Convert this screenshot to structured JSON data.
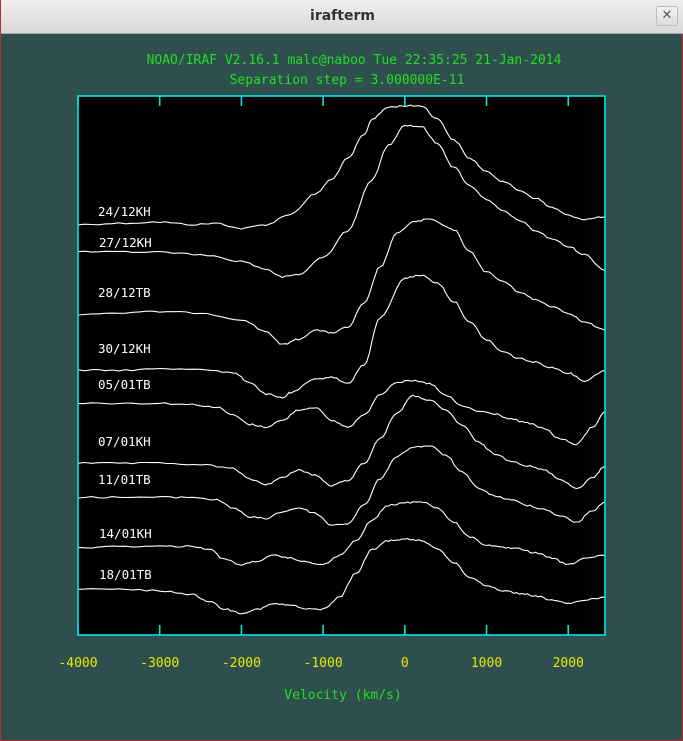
{
  "window": {
    "title": "irafterm",
    "close_symbol": "✕"
  },
  "header": {
    "line1": "NOAO/IRAF V2.16.1 malc@naboo Tue 22:35:25 21-Jan-2014",
    "line2": "Separation step = 3.000000E-11"
  },
  "colors": {
    "background": "#2f4f4f",
    "frame": "#00e5e5",
    "header_text": "#22dd22",
    "tick_labels": "#e8e800",
    "traces": "#ffffff"
  },
  "chart_data": {
    "type": "line",
    "xlabel": "Velocity (km/s)",
    "xlim": [
      -4000,
      2450
    ],
    "x_ticks": [
      -4000,
      -3000,
      -2000,
      -1000,
      0,
      1000,
      2000
    ],
    "x_tick_labels": [
      "-4000",
      "-3000",
      "-2000",
      "-1000",
      "0",
      "1000",
      "2000"
    ],
    "y_axis_labels": "none",
    "y_order": "top-to-bottom: 24/12KH, 27/12KH, 28/12TB, 30/12KH, 05/01TB, 07/01KH, 11/01TB, 14/01KH, 18/01TB",
    "grid": false,
    "series": [
      {
        "name": "24/12KH",
        "x": [
          -4000,
          -3500,
          -3000,
          -2600,
          -2300,
          -2000,
          -1700,
          -1400,
          -1100,
          -900,
          -700,
          -500,
          -400,
          -200,
          0,
          200,
          400,
          600,
          800,
          1000,
          1200,
          1400,
          1600,
          1800,
          2000,
          2200,
          2450
        ],
        "y": [
          -0.2,
          -0.1,
          0.0,
          -0.2,
          -0.1,
          -0.5,
          -0.2,
          0.6,
          2.1,
          3.2,
          4.8,
          6.6,
          7.8,
          8.7,
          8.8,
          8.8,
          7.8,
          6.2,
          4.8,
          3.8,
          3.1,
          2.4,
          1.8,
          1.1,
          0.5,
          0.2,
          0.4
        ]
      },
      {
        "name": "27/12KH",
        "x": [
          -4000,
          -3500,
          -3000,
          -2500,
          -2000,
          -1700,
          -1500,
          -1300,
          -1000,
          -700,
          -400,
          -200,
          0,
          200,
          400,
          600,
          800,
          1000,
          1200,
          1400,
          1600,
          1800,
          2000,
          2200,
          2450
        ],
        "y": [
          -0.3,
          -0.3,
          -0.3,
          -0.5,
          -1.0,
          -1.6,
          -2.2,
          -2.0,
          -0.7,
          1.3,
          5.2,
          7.8,
          9.3,
          9.2,
          7.9,
          6.1,
          4.7,
          3.7,
          2.8,
          2.1,
          1.3,
          0.7,
          0.1,
          -0.5,
          -1.7
        ]
      },
      {
        "name": "28/12TB",
        "x": [
          -4000,
          -3500,
          -3000,
          -2500,
          -2000,
          -1700,
          -1500,
          -1300,
          -1100,
          -900,
          -700,
          -500,
          -300,
          -100,
          100,
          300,
          600,
          800,
          1000,
          1200,
          1400,
          1600,
          1800,
          2000,
          2200,
          2450
        ],
        "y": [
          -0.4,
          -0.3,
          -0.2,
          -0.3,
          -0.8,
          -1.7,
          -2.7,
          -2.3,
          -1.6,
          -1.8,
          -1.4,
          0.4,
          3.2,
          5.7,
          6.6,
          6.8,
          6.0,
          4.3,
          2.8,
          2.1,
          1.3,
          0.7,
          0.2,
          -0.3,
          -1.0,
          -1.6
        ]
      },
      {
        "name": "30/12KH",
        "x": [
          -4000,
          -3500,
          -3000,
          -2500,
          -2100,
          -1900,
          -1700,
          -1500,
          -1400,
          -1100,
          -900,
          -700,
          -500,
          -300,
          0,
          200,
          400,
          600,
          800,
          1000,
          1200,
          1400,
          1600,
          1800,
          2000,
          2200,
          2450
        ],
        "y": [
          -0.4,
          -0.4,
          -0.3,
          -0.3,
          -0.6,
          -1.3,
          -2.2,
          -2.5,
          -2.1,
          -1.1,
          -0.9,
          -1.4,
          0.0,
          3.6,
          6.6,
          6.8,
          6.2,
          4.8,
          3.2,
          1.9,
          1.0,
          0.5,
          0.2,
          -0.2,
          -0.6,
          -1.2,
          -0.4
        ]
      },
      {
        "name": "05/01TB",
        "x": [
          -4000,
          -3500,
          -3000,
          -2600,
          -2300,
          -2100,
          -1900,
          -1700,
          -1500,
          -1300,
          -1100,
          -900,
          -700,
          -500,
          -300,
          -100,
          100,
          300,
          500,
          700,
          900,
          1100,
          1300,
          1500,
          1700,
          1900,
          2100,
          2300,
          2450
        ],
        "y": [
          -0.4,
          -0.4,
          -0.4,
          -0.5,
          -0.7,
          -1.3,
          -2.0,
          -2.2,
          -1.7,
          -0.9,
          -0.7,
          -1.7,
          -2.2,
          -1.3,
          0.3,
          1.2,
          1.3,
          1.1,
          0.2,
          -0.6,
          -1.0,
          -1.2,
          -1.6,
          -1.9,
          -2.3,
          -3.1,
          -3.5,
          -2.2,
          -1.0
        ]
      },
      {
        "name": "07/01KH",
        "x": [
          -4000,
          -3500,
          -3000,
          -2500,
          -2100,
          -1900,
          -1700,
          -1500,
          -1300,
          -1100,
          -900,
          -700,
          -500,
          -300,
          -100,
          100,
          300,
          500,
          700,
          900,
          1100,
          1300,
          1500,
          1700,
          1900,
          2100,
          2300,
          2450
        ],
        "y": [
          -0.4,
          -0.4,
          -0.4,
          -0.5,
          -0.8,
          -1.6,
          -2.0,
          -1.5,
          -0.9,
          -1.3,
          -2.1,
          -1.7,
          -0.4,
          1.5,
          3.4,
          4.7,
          4.4,
          3.6,
          2.5,
          1.2,
          0.3,
          -0.2,
          -0.6,
          -0.9,
          -1.6,
          -2.3,
          -1.5,
          -0.6
        ]
      },
      {
        "name": "11/01TB",
        "x": [
          -4000,
          -3500,
          -3000,
          -2600,
          -2300,
          -2100,
          -1900,
          -1700,
          -1500,
          -1300,
          -1100,
          -900,
          -700,
          -500,
          -300,
          -100,
          100,
          300,
          500,
          700,
          900,
          1100,
          1300,
          1500,
          1700,
          1900,
          2100,
          2300,
          2450
        ],
        "y": [
          -0.4,
          -0.4,
          -0.4,
          -0.4,
          -0.6,
          -1.2,
          -1.9,
          -2.0,
          -1.5,
          -1.2,
          -1.6,
          -2.5,
          -2.4,
          -1.0,
          1.0,
          2.7,
          3.4,
          3.5,
          2.8,
          1.5,
          0.3,
          -0.3,
          -0.6,
          -1.0,
          -1.3,
          -1.8,
          -2.3,
          -1.4,
          -0.8
        ]
      },
      {
        "name": "14/01KH",
        "x": [
          -4000,
          -3500,
          -3000,
          -2600,
          -2400,
          -2200,
          -2000,
          -1800,
          -1600,
          -1400,
          -1200,
          -1000,
          -800,
          -600,
          -400,
          -200,
          0,
          200,
          400,
          600,
          800,
          1000,
          1200,
          1400,
          1600,
          1800,
          2000,
          2200,
          2450
        ],
        "y": [
          -0.2,
          -0.1,
          -0.1,
          -0.1,
          -0.3,
          -1.1,
          -1.5,
          -1.2,
          -0.8,
          -1.0,
          -1.3,
          -1.5,
          -0.8,
          0.3,
          1.9,
          3.0,
          3.2,
          3.3,
          2.8,
          1.7,
          0.6,
          0.0,
          -0.2,
          -0.3,
          -0.6,
          -1.0,
          -1.5,
          -1.0,
          -0.8
        ]
      },
      {
        "name": "18/01TB",
        "x": [
          -4000,
          -3500,
          -3000,
          -2600,
          -2400,
          -2200,
          -2000,
          -1800,
          -1600,
          -1400,
          -1200,
          -1000,
          -800,
          -600,
          -400,
          -200,
          0,
          200,
          400,
          600,
          800,
          1000,
          1200,
          1400,
          1600,
          1800,
          2000,
          2200,
          2450
        ],
        "y": [
          -0.1,
          -0.1,
          -0.2,
          -0.5,
          -1.0,
          -1.6,
          -1.9,
          -1.6,
          -1.2,
          -1.3,
          -1.6,
          -1.6,
          -0.7,
          1.1,
          2.9,
          3.6,
          3.7,
          3.6,
          3.0,
          1.9,
          0.8,
          0.2,
          -0.2,
          -0.4,
          -0.6,
          -0.9,
          -1.2,
          -0.9,
          -0.7
        ]
      }
    ]
  }
}
